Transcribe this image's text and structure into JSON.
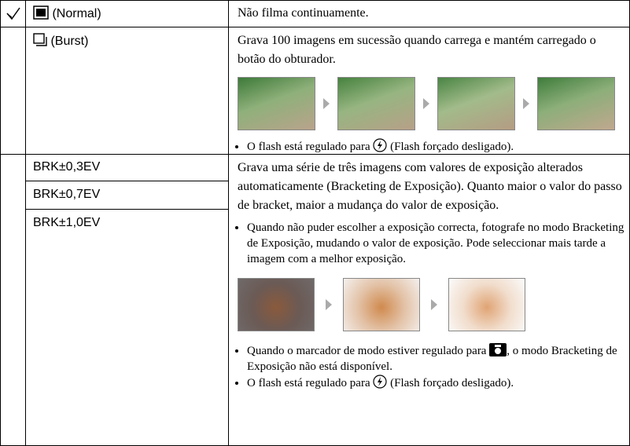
{
  "rows": [
    {
      "mode": "(Normal)",
      "description": "Não filma continuamente."
    },
    {
      "mode": "(Burst)",
      "description": "Grava 100 imagens em sucessão quando carrega e mantém carregado o botão do obturador.",
      "notes": [
        {
          "before": "O flash está regulado para",
          "after": "(Flash forçado desligado)."
        }
      ]
    },
    {
      "modes": [
        "BRK±0,3EV",
        "BRK±0,7EV",
        "BRK±1,0EV"
      ],
      "description": "Grava uma série de três imagens com valores de exposição alterados automaticamente (Bracketing de Exposição). Quanto maior o valor do passo de bracket, maior a mudança do valor de exposição.",
      "notes": [
        {
          "text": "Quando não puder escolher a exposição correcta, fotografe no modo Bracketing de Exposição, mudando o valor de exposição. Pode seleccionar mais tarde a imagem com a melhor exposição."
        },
        {
          "before": "Quando o marcador de modo estiver regulado para",
          "after": ", o modo Bracketing de Exposição não está disponível."
        },
        {
          "before": "O flash está regulado para",
          "after": "(Flash forçado desligado)."
        }
      ]
    }
  ]
}
